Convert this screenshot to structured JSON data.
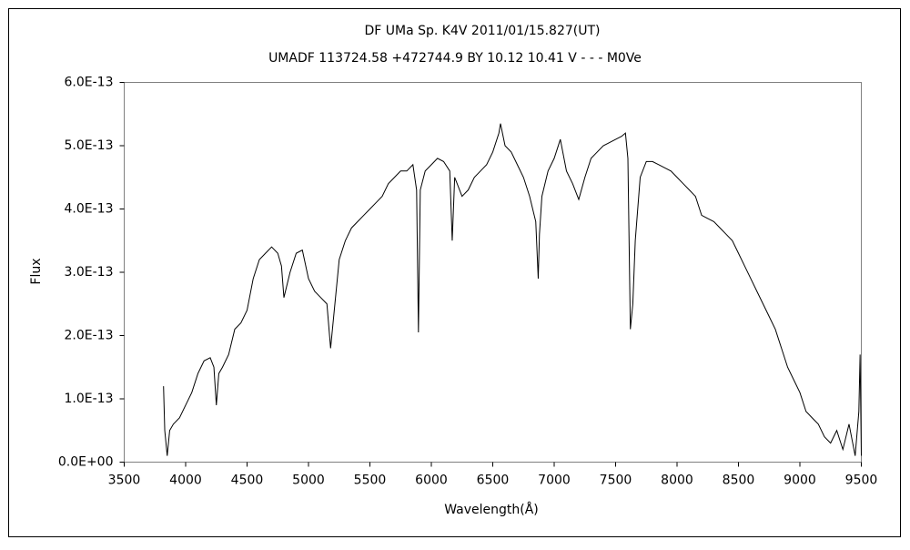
{
  "chart_data": {
    "type": "line",
    "title": "DF UMa    Sp. K4V    2011/01/15.827(UT)",
    "subtitle": "UMADF 113724.58 +472744.9 BY 10.12 10.41  V - - - M0Ve",
    "x_label": "Wavelength(Å)",
    "y_label": "Flux",
    "x": [
      3820,
      3830,
      3850,
      3870,
      3900,
      3950,
      4000,
      4050,
      4100,
      4150,
      4200,
      4230,
      4250,
      4270,
      4300,
      4350,
      4400,
      4450,
      4500,
      4550,
      4600,
      4650,
      4700,
      4750,
      4780,
      4800,
      4850,
      4900,
      4950,
      5000,
      5050,
      5100,
      5150,
      5180,
      5200,
      5250,
      5300,
      5350,
      5400,
      5450,
      5500,
      5550,
      5600,
      5650,
      5700,
      5750,
      5800,
      5850,
      5880,
      5895,
      5910,
      5950,
      6000,
      6050,
      6100,
      6150,
      6170,
      6190,
      6250,
      6300,
      6350,
      6400,
      6450,
      6500,
      6550,
      6563,
      6600,
      6650,
      6700,
      6750,
      6800,
      6850,
      6870,
      6880,
      6900,
      6950,
      7000,
      7050,
      7100,
      7150,
      7200,
      7250,
      7300,
      7350,
      7400,
      7450,
      7500,
      7550,
      7580,
      7600,
      7620,
      7640,
      7660,
      7700,
      7750,
      7800,
      7850,
      7900,
      7950,
      8000,
      8050,
      8100,
      8150,
      8200,
      8250,
      8300,
      8350,
      8400,
      8450,
      8500,
      8550,
      8600,
      8650,
      8700,
      8750,
      8800,
      8850,
      8900,
      8950,
      9000,
      9050,
      9100,
      9150,
      9200,
      9250,
      9300,
      9350,
      9400,
      9450,
      9480,
      9490,
      9500
    ],
    "series": [
      {
        "name": "Flux",
        "color": "#000000",
        "values": [
          1.2e-13,
          5e-14,
          1e-14,
          5e-14,
          6e-14,
          7e-14,
          9e-14,
          1.1e-13,
          1.4e-13,
          1.6e-13,
          1.65e-13,
          1.5e-13,
          9e-14,
          1.4e-13,
          1.5e-13,
          1.7e-13,
          2.1e-13,
          2.2e-13,
          2.4e-13,
          2.9e-13,
          3.2e-13,
          3.3e-13,
          3.4e-13,
          3.3e-13,
          3.1e-13,
          2.6e-13,
          3e-13,
          3.3e-13,
          3.35e-13,
          2.9e-13,
          2.7e-13,
          2.6e-13,
          2.5e-13,
          1.8e-13,
          2.2e-13,
          3.2e-13,
          3.5e-13,
          3.7e-13,
          3.8e-13,
          3.9e-13,
          4e-13,
          4.1e-13,
          4.2e-13,
          4.4e-13,
          4.5e-13,
          4.6e-13,
          4.6e-13,
          4.7e-13,
          4.3e-13,
          2.05e-13,
          4.3e-13,
          4.6e-13,
          4.7e-13,
          4.8e-13,
          4.75e-13,
          4.6e-13,
          3.5e-13,
          4.5e-13,
          4.2e-13,
          4.3e-13,
          4.5e-13,
          4.6e-13,
          4.7e-13,
          4.9e-13,
          5.2e-13,
          5.35e-13,
          5e-13,
          4.9e-13,
          4.7e-13,
          4.5e-13,
          4.2e-13,
          3.8e-13,
          2.9e-13,
          3.6e-13,
          4.2e-13,
          4.6e-13,
          4.8e-13,
          5.1e-13,
          4.6e-13,
          4.4e-13,
          4.15e-13,
          4.5e-13,
          4.8e-13,
          4.9e-13,
          5e-13,
          5.05e-13,
          5.1e-13,
          5.15e-13,
          5.2e-13,
          4.8e-13,
          2.1e-13,
          2.5e-13,
          3.5e-13,
          4.5e-13,
          4.75e-13,
          4.75e-13,
          4.7e-13,
          4.65e-13,
          4.6e-13,
          4.5e-13,
          4.4e-13,
          4.3e-13,
          4.2e-13,
          3.9e-13,
          3.85e-13,
          3.8e-13,
          3.7e-13,
          3.6e-13,
          3.5e-13,
          3.3e-13,
          3.1e-13,
          2.9e-13,
          2.7e-13,
          2.5e-13,
          2.3e-13,
          2.1e-13,
          1.8e-13,
          1.5e-13,
          1.3e-13,
          1.1e-13,
          8e-14,
          7e-14,
          6e-14,
          4e-14,
          3e-14,
          5e-14,
          2e-14,
          6e-14,
          1e-14,
          8e-14,
          1.7e-13,
          1e-14
        ]
      }
    ],
    "xlim": [
      3500,
      9500
    ],
    "xticks": [
      3500,
      4000,
      4500,
      5000,
      5500,
      6000,
      6500,
      7000,
      7500,
      8000,
      8500,
      9000,
      9500
    ],
    "ylim": [
      0,
      6e-13
    ],
    "yticks": [
      {
        "value": 0,
        "label": "0.0E+00"
      },
      {
        "value": 1e-13,
        "label": "1.0E-13"
      },
      {
        "value": 2e-13,
        "label": "2.0E-13"
      },
      {
        "value": 3e-13,
        "label": "3.0E-13"
      },
      {
        "value": 4e-13,
        "label": "4.0E-13"
      },
      {
        "value": 5e-13,
        "label": "5.0E-13"
      },
      {
        "value": 6e-13,
        "label": "6.0E-13"
      }
    ],
    "grid": false
  }
}
